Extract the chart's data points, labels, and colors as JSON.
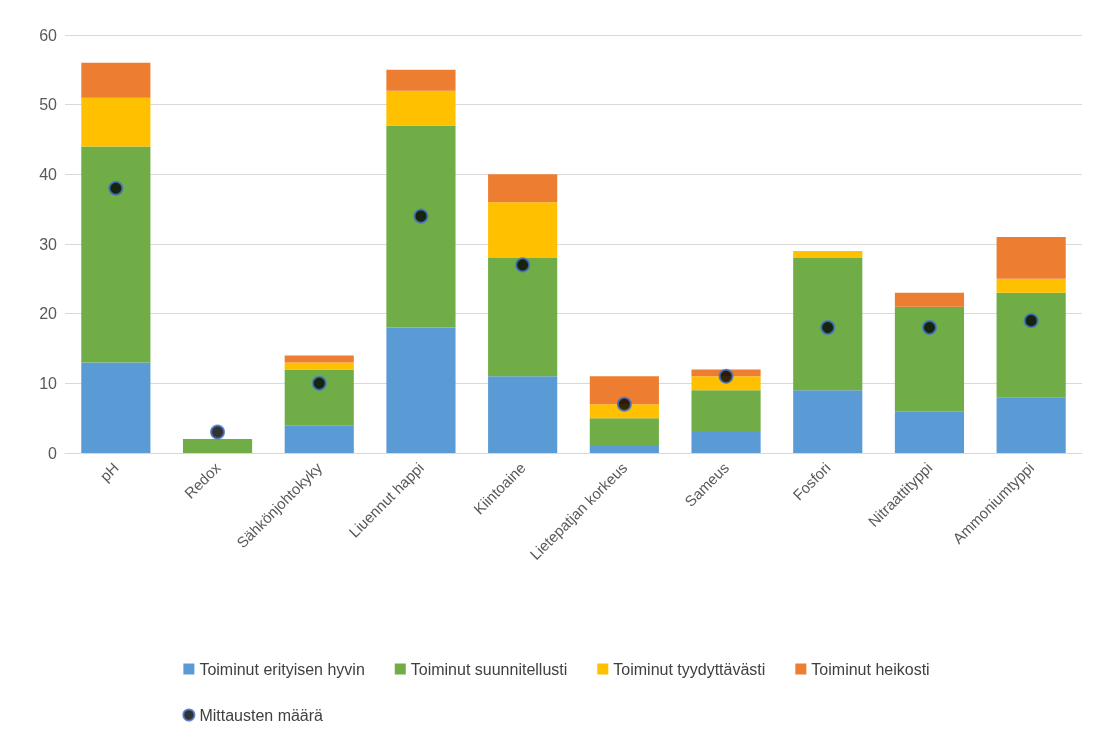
{
  "chart_data": {
    "type": "bar",
    "stacked": true,
    "categories": [
      "pH",
      "Redox",
      "Sähkönjohtokyky",
      "Liuennut happi",
      "Kiintoaine",
      "Lietepatjan korkeus",
      "Sameus",
      "Fosfori",
      "Nitraattityppi",
      "Ammoniumtyppi"
    ],
    "series": [
      {
        "name": "Toiminut erityisen hyvin",
        "color": "#5b9bd5",
        "values": [
          13,
          0,
          4,
          18,
          11,
          1,
          3,
          9,
          6,
          8
        ]
      },
      {
        "name": "Toiminut suunnitellusti",
        "color": "#70ad47",
        "values": [
          31,
          2,
          8,
          29,
          17,
          4,
          6,
          19,
          15,
          15
        ]
      },
      {
        "name": "Toiminut tyydyttävästi",
        "color": "#ffc000",
        "values": [
          7,
          0,
          1,
          5,
          8,
          2,
          2,
          1,
          0,
          2
        ]
      },
      {
        "name": "Toiminut heikosti",
        "color": "#ed7d31",
        "values": [
          5,
          0,
          1,
          3,
          4,
          4,
          1,
          0,
          2,
          6
        ]
      },
      {
        "name": "Mittausten määrä",
        "type": "scatter",
        "color": "#000000",
        "marker": "circle",
        "x": [
          "pH",
          "Redox",
          "Sähkönjohtokyky",
          "Liuennut happi",
          "Kiintoaine",
          "Lietepatjan korkeus",
          "Sameus",
          "Fosfori",
          "Nitraattityppi",
          "Ammoniumtyppi"
        ],
        "values": [
          38,
          3,
          10,
          34,
          27,
          7,
          11,
          18,
          18,
          19
        ]
      }
    ],
    "ylim": [
      0,
      60
    ],
    "yticks": [
      0,
      10,
      20,
      30,
      40,
      50,
      60
    ],
    "grid": "y",
    "legend": "bottom"
  }
}
